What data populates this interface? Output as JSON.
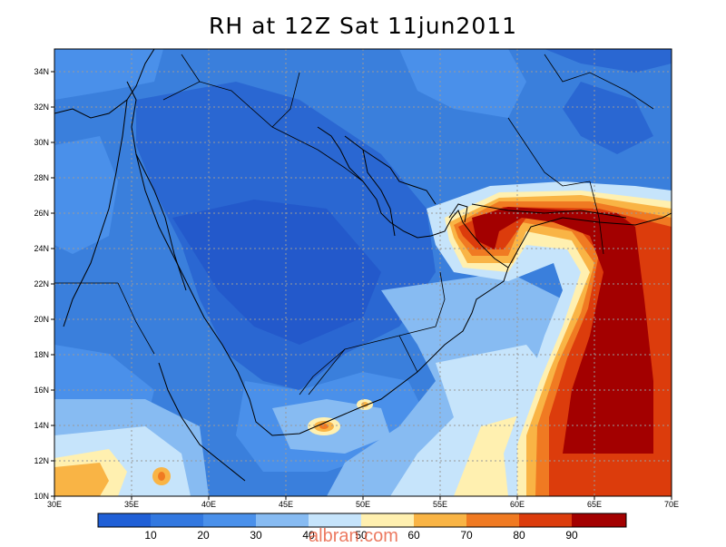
{
  "title": "RH at 12Z Sat 11jun2011",
  "axes": {
    "x_ticks": [
      "30E",
      "35E",
      "40E",
      "45E",
      "50E",
      "55E",
      "60E",
      "65E",
      "70E"
    ],
    "y_ticks": [
      "10N",
      "12N",
      "14N",
      "16N",
      "18N",
      "20N",
      "22N",
      "24N",
      "26N",
      "28N",
      "30N",
      "32N",
      "34N"
    ],
    "x_range": [
      30,
      70
    ],
    "y_range": [
      10,
      35.2
    ]
  },
  "colorbar": {
    "labels": [
      "10",
      "20",
      "30",
      "40",
      "50",
      "60",
      "70",
      "80",
      "90"
    ],
    "colors": [
      "#1f5fd6",
      "#3278e0",
      "#4a90ea",
      "#87bbf2",
      "#c6e4fb",
      "#fff0b0",
      "#f9b445",
      "#f07a22",
      "#dc3c0c",
      "#a30000"
    ]
  },
  "watermark": "albran.com",
  "colors": {
    "background_field": "#3a7fdc",
    "dry_interior": "#2a67d2",
    "moist_core": "#a30000"
  }
}
